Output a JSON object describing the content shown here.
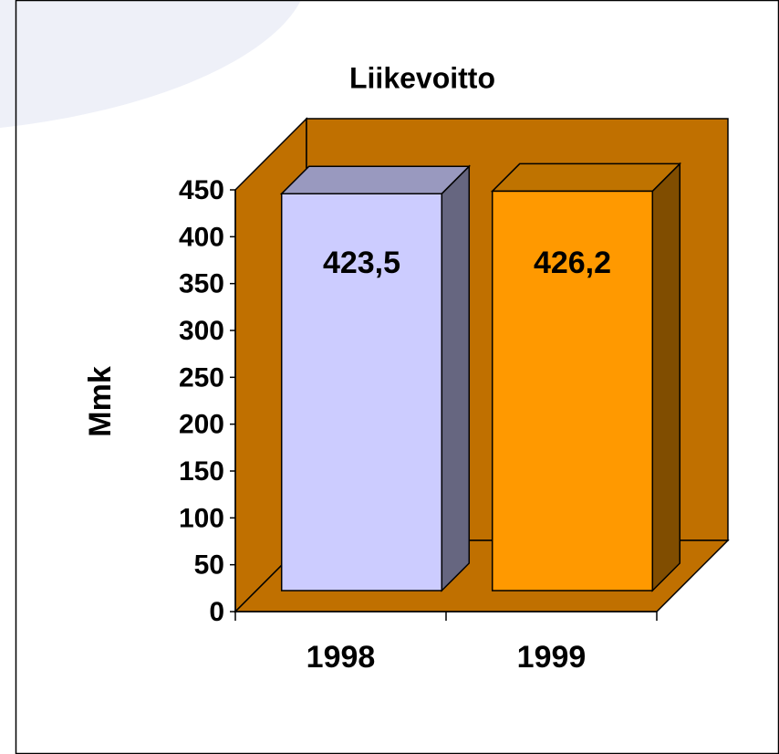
{
  "chart_data": {
    "type": "bar3d",
    "title": "Liikevoitto",
    "y_label": "Mmk",
    "categories": [
      "1998",
      "1999"
    ],
    "values": [
      423.5,
      426.2
    ],
    "value_labels": [
      "423,5",
      "426,2"
    ],
    "colors": [
      "#ccccff",
      "#ff9900"
    ],
    "wall_color": "#c07000",
    "ylim": [
      0,
      450
    ],
    "yticks": [
      0,
      50,
      100,
      150,
      200,
      250,
      300,
      350,
      400,
      450
    ],
    "grid": false
  }
}
